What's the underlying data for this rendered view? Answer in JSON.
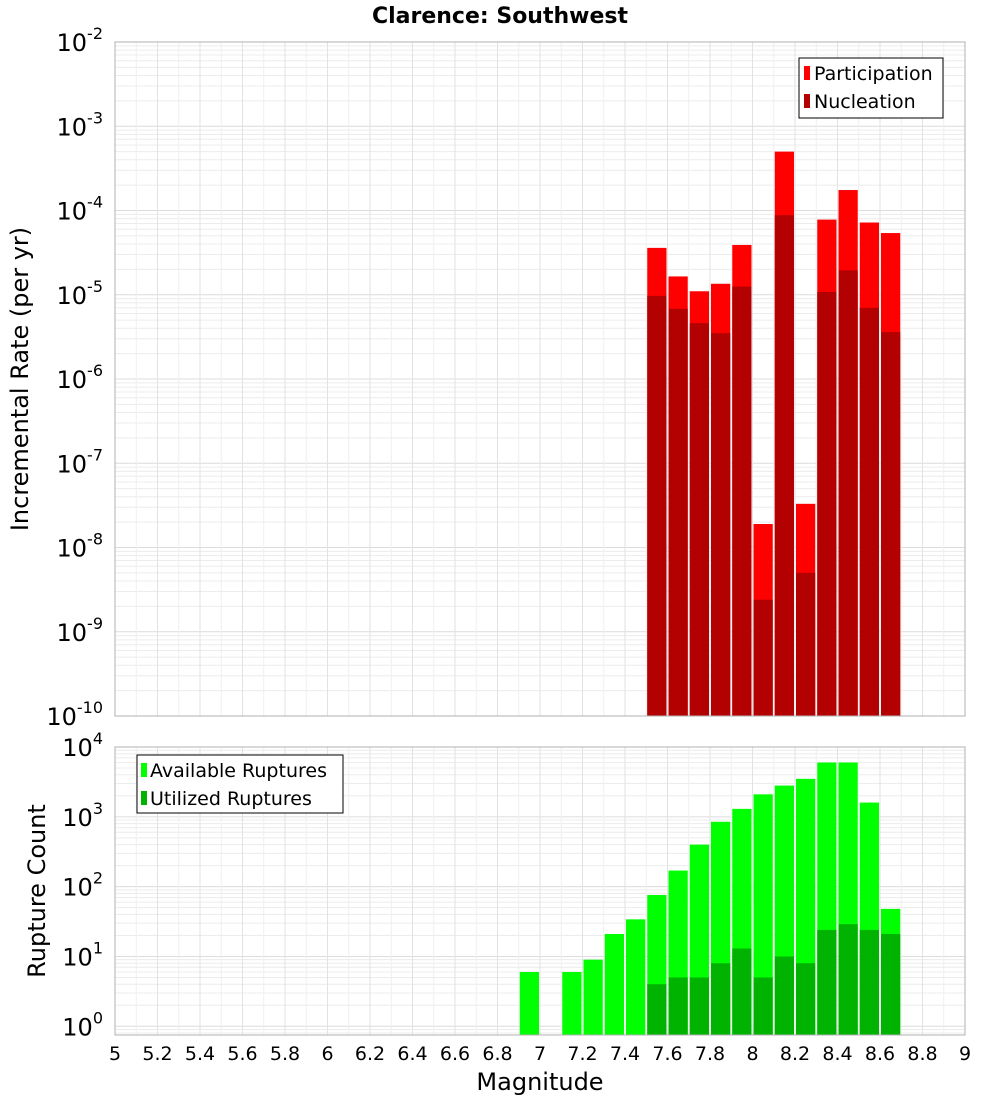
{
  "title": "Clarence: Southwest",
  "xlabel": "Magnitude",
  "chart_data": [
    {
      "type": "bar",
      "panel": "top",
      "ylabel": "Incremental Rate (per yr)",
      "yscale": "log",
      "ylim": [
        1e-10,
        0.01
      ],
      "xlim": [
        5,
        9
      ],
      "grid": true,
      "legend_position": "top-right",
      "y_tick_labels": [
        {
          "base": "10",
          "exp": "-10",
          "value": 1e-10
        },
        {
          "base": "10",
          "exp": "-9",
          "value": 1e-09
        },
        {
          "base": "10",
          "exp": "-8",
          "value": 1e-08
        },
        {
          "base": "10",
          "exp": "-7",
          "value": 1e-07
        },
        {
          "base": "10",
          "exp": "-6",
          "value": 1e-06
        },
        {
          "base": "10",
          "exp": "-5",
          "value": 1e-05
        },
        {
          "base": "10",
          "exp": "-4",
          "value": 0.0001
        },
        {
          "base": "10",
          "exp": "-3",
          "value": 0.001
        },
        {
          "base": "10",
          "exp": "-2",
          "value": 0.01
        }
      ],
      "bin_width": 0.1,
      "x": [
        7.55,
        7.65,
        7.75,
        7.85,
        7.95,
        8.05,
        8.15,
        8.25,
        8.35,
        8.45,
        8.55,
        8.65
      ],
      "series": [
        {
          "name": "Participation",
          "color": "#ff0000",
          "values": [
            3.6e-05,
            1.65e-05,
            1.1e-05,
            1.35e-05,
            3.9e-05,
            1.9e-08,
            0.0005,
            3.3e-08,
            7.8e-05,
            0.000175,
            7.2e-05,
            5.4e-05
          ]
        },
        {
          "name": "Nucleation",
          "color": "#b30000",
          "values": [
            9.7e-06,
            6.8e-06,
            4.6e-06,
            3.5e-06,
            1.25e-05,
            2.4e-09,
            8.8e-05,
            5e-09,
            1.08e-05,
            1.95e-05,
            7e-06,
            3.6e-06
          ]
        }
      ]
    },
    {
      "type": "bar",
      "panel": "bottom",
      "ylabel": "Rupture Count",
      "yscale": "log",
      "ylim": [
        0.75,
        10000
      ],
      "xlim": [
        5,
        9
      ],
      "grid": true,
      "legend_position": "top-left",
      "y_tick_labels": [
        {
          "base": "10",
          "exp": "0",
          "value": 1
        },
        {
          "base": "10",
          "exp": "1",
          "value": 10
        },
        {
          "base": "10",
          "exp": "2",
          "value": 100
        },
        {
          "base": "10",
          "exp": "3",
          "value": 1000
        },
        {
          "base": "10",
          "exp": "4",
          "value": 10000
        }
      ],
      "bin_width": 0.1,
      "x": [
        6.95,
        7.05,
        7.15,
        7.25,
        7.35,
        7.45,
        7.55,
        7.65,
        7.75,
        7.85,
        7.95,
        8.05,
        8.15,
        8.25,
        8.35,
        8.45,
        8.55,
        8.65
      ],
      "series": [
        {
          "name": "Available Ruptures",
          "color": "#00ff00",
          "values": [
            6,
            0,
            6,
            9,
            21,
            34,
            76,
            170,
            400,
            850,
            1300,
            2100,
            2800,
            3500,
            6000,
            6000,
            1600,
            48
          ]
        },
        {
          "name": "Utilized Ruptures",
          "color": "#00b300",
          "values": [
            0,
            0,
            0,
            0,
            0,
            0,
            4,
            5,
            5,
            8,
            13,
            5,
            10,
            8,
            24,
            29,
            24,
            21
          ]
        }
      ]
    }
  ],
  "x_tick_labels": [
    "5",
    "5.2",
    "5.4",
    "5.6",
    "5.8",
    "6",
    "6.2",
    "6.4",
    "6.6",
    "6.8",
    "7",
    "7.2",
    "7.4",
    "7.6",
    "7.8",
    "8",
    "8.2",
    "8.4",
    "8.6",
    "8.8",
    "9"
  ]
}
